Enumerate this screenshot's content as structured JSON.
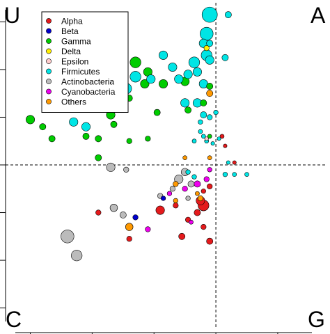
{
  "chart_data": {
    "type": "scatter",
    "title": "",
    "xlabel": "",
    "ylabel": "",
    "xlim": [
      -0.68,
      0.36
    ],
    "ylim": [
      -0.68,
      0.68
    ],
    "x_ref_line": 0,
    "y_ref_line": 0,
    "grid": false,
    "axis_ticks_shown": "left and bottom, unlabeled",
    "legend_placement": "top-left",
    "corner_labels": {
      "top_left": "U",
      "top_right": "A",
      "bottom_left": "C",
      "bottom_right": "G"
    },
    "series": [
      {
        "name": "Alpha",
        "color": "#e41a1c",
        "points": [
          {
            "x": -0.18,
            "y": -0.19,
            "size": 3
          },
          {
            "x": -0.05,
            "y": -0.15,
            "size": 3
          },
          {
            "x": -0.04,
            "y": -0.17,
            "size": 4
          },
          {
            "x": -0.06,
            "y": -0.2,
            "size": 2
          },
          {
            "x": -0.09,
            "y": -0.23,
            "size": 1.5
          },
          {
            "x": -0.04,
            "y": -0.26,
            "size": 1.5
          },
          {
            "x": -0.02,
            "y": -0.32,
            "size": 2
          },
          {
            "x": -0.11,
            "y": -0.3,
            "size": 2
          },
          {
            "x": -0.28,
            "y": -0.31,
            "size": 1.5
          },
          {
            "x": -0.38,
            "y": -0.2,
            "size": 1.5
          },
          {
            "x": -0.13,
            "y": -0.17,
            "size": 1.5
          },
          {
            "x": 0.02,
            "y": 0.12,
            "size": 1
          },
          {
            "x": 0.03,
            "y": 0.08,
            "size": 0.8
          },
          {
            "x": 0.06,
            "y": 0.01,
            "size": 0.8
          },
          {
            "x": -0.04,
            "y": -0.11,
            "size": 1.2
          },
          {
            "x": -0.02,
            "y": -0.09,
            "size": 1.5
          }
        ]
      },
      {
        "name": "Beta",
        "color": "#0000cc",
        "points": [
          {
            "x": -0.26,
            "y": -0.22,
            "size": 1.5
          },
          {
            "x": -0.17,
            "y": -0.14,
            "size": 1.2
          }
        ]
      },
      {
        "name": "Gamma",
        "color": "#00cc00",
        "points": [
          {
            "x": -0.36,
            "y": 0.48,
            "size": 4
          },
          {
            "x": -0.35,
            "y": 0.46,
            "size": 4
          },
          {
            "x": -0.32,
            "y": 0.42,
            "size": 3
          },
          {
            "x": -0.26,
            "y": 0.43,
            "size": 4
          },
          {
            "x": -0.22,
            "y": 0.39,
            "size": 3
          },
          {
            "x": -0.36,
            "y": 0.34,
            "size": 4
          },
          {
            "x": -0.31,
            "y": 0.33,
            "size": 3
          },
          {
            "x": -0.23,
            "y": 0.34,
            "size": 3
          },
          {
            "x": -0.17,
            "y": 0.34,
            "size": 3
          },
          {
            "x": -0.1,
            "y": 0.35,
            "size": 3
          },
          {
            "x": -0.34,
            "y": 0.27,
            "size": 3
          },
          {
            "x": -0.28,
            "y": 0.28,
            "size": 2
          },
          {
            "x": -0.31,
            "y": 0.24,
            "size": 3
          },
          {
            "x": -0.34,
            "y": 0.21,
            "size": 3
          },
          {
            "x": -0.45,
            "y": 0.25,
            "size": 2.5
          },
          {
            "x": -0.02,
            "y": 0.33,
            "size": 2
          },
          {
            "x": -0.04,
            "y": 0.26,
            "size": 2
          },
          {
            "x": -0.19,
            "y": 0.22,
            "size": 2
          },
          {
            "x": -0.09,
            "y": 0.23,
            "size": 2
          },
          {
            "x": -0.33,
            "y": 0.17,
            "size": 2
          },
          {
            "x": -0.6,
            "y": 0.19,
            "size": 3
          },
          {
            "x": -0.56,
            "y": 0.16,
            "size": 2
          },
          {
            "x": -0.42,
            "y": 0.12,
            "size": 2
          },
          {
            "x": -0.38,
            "y": 0.11,
            "size": 2
          },
          {
            "x": -0.53,
            "y": 0.11,
            "size": 2
          },
          {
            "x": -0.22,
            "y": 0.11,
            "size": 1.5
          },
          {
            "x": -0.28,
            "y": 0.1,
            "size": 1.5
          },
          {
            "x": -0.02,
            "y": 0.12,
            "size": 1
          },
          {
            "x": -0.38,
            "y": 0.03,
            "size": 2
          }
        ]
      },
      {
        "name": "Delta",
        "color": "#ffee00",
        "points": [
          {
            "x": -0.03,
            "y": 0.49,
            "size": 1.5
          }
        ]
      },
      {
        "name": "Epsilon",
        "color": "#ffcccc",
        "points": [
          {
            "x": -0.03,
            "y": 0.11,
            "size": 0.8
          }
        ]
      },
      {
        "name": "Firmicutes",
        "color": "#00e5e5",
        "points": [
          {
            "x": -0.02,
            "y": 0.63,
            "size": 6
          },
          {
            "x": -0.03,
            "y": 0.55,
            "size": 5
          },
          {
            "x": -0.04,
            "y": 0.51,
            "size": 3
          },
          {
            "x": -0.02,
            "y": 0.51,
            "size": 2
          },
          {
            "x": 0.04,
            "y": 0.63,
            "size": 2
          },
          {
            "x": -0.03,
            "y": 0.46,
            "size": 4
          },
          {
            "x": -0.07,
            "y": 0.43,
            "size": 4
          },
          {
            "x": -0.06,
            "y": 0.39,
            "size": 3
          },
          {
            "x": -0.09,
            "y": 0.38,
            "size": 3
          },
          {
            "x": -0.12,
            "y": 0.36,
            "size": 3
          },
          {
            "x": -0.14,
            "y": 0.41,
            "size": 3
          },
          {
            "x": -0.02,
            "y": 0.44,
            "size": 3
          },
          {
            "x": -0.21,
            "y": 0.36,
            "size": 3
          },
          {
            "x": -0.17,
            "y": 0.46,
            "size": 3
          },
          {
            "x": -0.04,
            "y": 0.34,
            "size": 3
          },
          {
            "x": 0.03,
            "y": 0.45,
            "size": 2
          },
          {
            "x": -0.26,
            "y": 0.37,
            "size": 4
          },
          {
            "x": -0.37,
            "y": 0.33,
            "size": 5
          },
          {
            "x": -0.29,
            "y": 0.32,
            "size": 4
          },
          {
            "x": -0.06,
            "y": 0.26,
            "size": 3
          },
          {
            "x": -0.1,
            "y": 0.26,
            "size": 3
          },
          {
            "x": -0.04,
            "y": 0.21,
            "size": 2
          },
          {
            "x": -0.02,
            "y": 0.2,
            "size": 1.5
          },
          {
            "x": 0,
            "y": 0.22,
            "size": 1.2
          },
          {
            "x": -0.05,
            "y": 0.18,
            "size": 1.2
          },
          {
            "x": -0.46,
            "y": 0.18,
            "size": 3
          },
          {
            "x": -0.42,
            "y": 0.16,
            "size": 3
          },
          {
            "x": -0.05,
            "y": 0.14,
            "size": 1
          },
          {
            "x": -0.04,
            "y": 0.12,
            "size": 1
          },
          {
            "x": 0.01,
            "y": 0.11,
            "size": 0.8
          },
          {
            "x": -0.07,
            "y": 0.1,
            "size": 1
          },
          {
            "x": -0.03,
            "y": 0.1,
            "size": 1
          },
          {
            "x": -0.01,
            "y": 0.09,
            "size": 0.8
          },
          {
            "x": 0.04,
            "y": 0.01,
            "size": 0.8
          },
          {
            "x": 0.03,
            "y": -0.04,
            "size": 1.2
          },
          {
            "x": 0.06,
            "y": -0.04,
            "size": 1
          },
          {
            "x": 0.1,
            "y": -0.04,
            "size": 1
          },
          {
            "x": -0.07,
            "y": -0.05,
            "size": 1.2
          },
          {
            "x": -0.09,
            "y": -0.03,
            "size": 1.2
          }
        ]
      },
      {
        "name": "Actinobacteria",
        "color": "#bbbbbb",
        "points": [
          {
            "x": -0.48,
            "y": -0.3,
            "size": 5
          },
          {
            "x": -0.45,
            "y": -0.38,
            "size": 4
          },
          {
            "x": -0.33,
            "y": -0.18,
            "size": 2.5
          },
          {
            "x": -0.3,
            "y": -0.21,
            "size": 2
          },
          {
            "x": -0.34,
            "y": -0.01,
            "size": 3
          },
          {
            "x": -0.1,
            "y": -0.03,
            "size": 2.5
          },
          {
            "x": -0.12,
            "y": -0.06,
            "size": 3
          },
          {
            "x": -0.08,
            "y": -0.08,
            "size": 2
          },
          {
            "x": -0.14,
            "y": -0.1,
            "size": 1.5
          },
          {
            "x": -0.18,
            "y": -0.13,
            "size": 1.5
          },
          {
            "x": -0.29,
            "y": -0.02,
            "size": 1.5
          },
          {
            "x": -0.09,
            "y": -0.14,
            "size": 1.2
          }
        ]
      },
      {
        "name": "Cyanobacteria",
        "color": "#ee00ee",
        "points": [
          {
            "x": -0.06,
            "y": -0.08,
            "size": 2
          },
          {
            "x": -0.03,
            "y": -0.06,
            "size": 1.5
          },
          {
            "x": -0.1,
            "y": -0.1,
            "size": 1.5
          },
          {
            "x": -0.15,
            "y": -0.12,
            "size": 1.2
          },
          {
            "x": -0.22,
            "y": -0.27,
            "size": 1.5
          },
          {
            "x": -0.02,
            "y": -0.02,
            "size": 1.2
          },
          {
            "x": -0.08,
            "y": -0.24,
            "size": 1
          }
        ]
      },
      {
        "name": "Others",
        "color": "#ff9900",
        "points": [
          {
            "x": -0.02,
            "y": 0.3,
            "size": 2
          },
          {
            "x": -0.28,
            "y": -0.26,
            "size": 2.5
          },
          {
            "x": -0.13,
            "y": -0.08,
            "size": 1.5
          },
          {
            "x": -0.02,
            "y": 0.03,
            "size": 1
          },
          {
            "x": -0.1,
            "y": 0.03,
            "size": 1
          },
          {
            "x": -0.05,
            "y": -0.14,
            "size": 1.5
          },
          {
            "x": -0.13,
            "y": -0.15,
            "size": 1.2
          },
          {
            "x": -0.06,
            "y": -0.12,
            "size": 1
          }
        ]
      }
    ]
  }
}
